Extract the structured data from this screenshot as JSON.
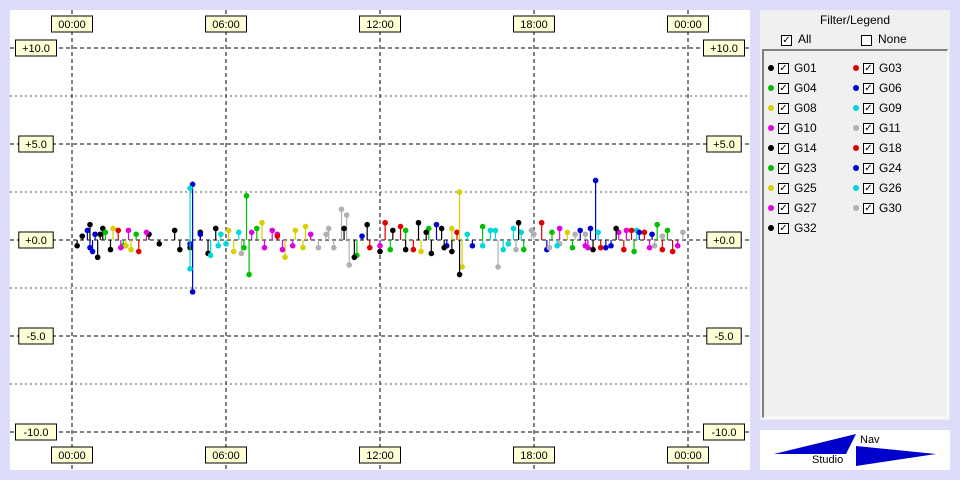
{
  "legend": {
    "title": "Filter/Legend",
    "all_label": "All",
    "none_label": "None",
    "all_checked": true,
    "none_checked": false,
    "check_glyph": "✓",
    "items": [
      {
        "label": "G01",
        "color": "#000000",
        "checked": true
      },
      {
        "label": "G03",
        "color": "#e00000",
        "checked": true
      },
      {
        "label": "G04",
        "color": "#00c000",
        "checked": true
      },
      {
        "label": "G06",
        "color": "#0000d0",
        "checked": true
      },
      {
        "label": "G08",
        "color": "#d8d000",
        "checked": true
      },
      {
        "label": "G09",
        "color": "#00d8d8",
        "checked": true
      },
      {
        "label": "G10",
        "color": "#e000e0",
        "checked": true
      },
      {
        "label": "G11",
        "color": "#b0b0b0",
        "checked": true
      },
      {
        "label": "G14",
        "color": "#000000",
        "checked": true
      },
      {
        "label": "G18",
        "color": "#e00000",
        "checked": true
      },
      {
        "label": "G23",
        "color": "#00c000",
        "checked": true
      },
      {
        "label": "G24",
        "color": "#0000d0",
        "checked": true
      },
      {
        "label": "G25",
        "color": "#d8d000",
        "checked": true
      },
      {
        "label": "G26",
        "color": "#00d8d8",
        "checked": true
      },
      {
        "label": "G27",
        "color": "#e000e0",
        "checked": true
      },
      {
        "label": "G30",
        "color": "#b0b0b0",
        "checked": true
      },
      {
        "label": "G32",
        "color": "#000000",
        "checked": true
      }
    ]
  },
  "logo": {
    "nav_text": "Nav",
    "studio_text": "Studio",
    "color": "#0000cc"
  },
  "chart_data": {
    "type": "scatter",
    "title": "",
    "xlabel": "",
    "ylabel": "",
    "xlim": [
      0,
      24
    ],
    "ylim": [
      -10,
      10
    ],
    "x_unit": "hours",
    "x_ticks": [
      0,
      6,
      12,
      18,
      24
    ],
    "x_tick_labels": [
      "00:00",
      "06:00",
      "12:00",
      "18:00",
      "00:00"
    ],
    "y_ticks": [
      10,
      5,
      0,
      -5,
      -10
    ],
    "y_tick_labels": [
      "+10.0",
      "+5.0",
      "+0.0",
      "-5.0",
      "-10.0"
    ],
    "grid": true,
    "grid_style": "dashed",
    "marker": "dot-with-stem",
    "series": [
      {
        "name": "G01",
        "color": "#000000",
        "points": [
          [
            0.4,
            0.2
          ],
          [
            0.7,
            0.8
          ],
          [
            1.0,
            -0.9
          ],
          [
            1.2,
            0.6
          ],
          [
            1.5,
            -0.5
          ],
          [
            3.0,
            0.3
          ],
          [
            3.4,
            -0.2
          ],
          [
            4.0,
            0.5
          ],
          [
            4.6,
            -0.4
          ],
          [
            5.0,
            0.4
          ],
          [
            5.3,
            -0.7
          ],
          [
            5.6,
            0.6
          ]
        ]
      },
      {
        "name": "G03",
        "color": "#e00000",
        "points": [
          [
            1.8,
            0.5
          ],
          [
            2.6,
            -0.6
          ],
          [
            11.6,
            -0.4
          ],
          [
            12.2,
            0.9
          ],
          [
            15.0,
            0.4
          ],
          [
            21.5,
            -0.5
          ],
          [
            22.3,
            0.4
          ],
          [
            23.4,
            -0.6
          ]
        ]
      },
      {
        "name": "G04",
        "color": "#00c000",
        "points": [
          [
            1.3,
            0.4
          ],
          [
            2.0,
            -0.3
          ],
          [
            6.8,
            2.3
          ],
          [
            6.9,
            -1.8
          ],
          [
            7.2,
            0.6
          ],
          [
            11.1,
            -0.8
          ],
          [
            13.0,
            0.5
          ],
          [
            16.0,
            0.7
          ],
          [
            19.5,
            -0.4
          ],
          [
            22.8,
            0.8
          ]
        ]
      },
      {
        "name": "G06",
        "color": "#0000d0",
        "points": [
          [
            0.7,
            -0.4
          ],
          [
            0.9,
            0.3
          ],
          [
            4.6,
            -0.2
          ],
          [
            4.7,
            2.9
          ],
          [
            4.7,
            -2.7
          ],
          [
            5.0,
            0.3
          ],
          [
            11.3,
            0.2
          ],
          [
            15.6,
            -0.3
          ],
          [
            19.8,
            0.5
          ],
          [
            20.4,
            3.1
          ],
          [
            21.0,
            -0.3
          ],
          [
            22.6,
            0.3
          ]
        ]
      },
      {
        "name": "G08",
        "color": "#d8d000",
        "points": [
          [
            1.6,
            0.6
          ],
          [
            2.3,
            -0.5
          ],
          [
            6.3,
            -0.6
          ],
          [
            7.4,
            0.9
          ],
          [
            8.3,
            -0.9
          ],
          [
            9.1,
            0.7
          ],
          [
            15.1,
            2.5
          ],
          [
            15.2,
            -1.4
          ],
          [
            14.8,
            0.6
          ]
        ]
      },
      {
        "name": "G09",
        "color": "#00d8d8",
        "points": [
          [
            4.6,
            2.7
          ],
          [
            4.6,
            -1.5
          ],
          [
            5.4,
            -0.8
          ],
          [
            5.8,
            0.3
          ],
          [
            6.0,
            -0.2
          ],
          [
            6.5,
            0.4
          ],
          [
            15.4,
            0.3
          ],
          [
            16.0,
            -0.3
          ],
          [
            16.5,
            0.5
          ],
          [
            17.0,
            -0.2
          ],
          [
            17.5,
            0.4
          ],
          [
            22.0,
            0.5
          ]
        ]
      },
      {
        "name": "G10",
        "color": "#e000e0",
        "points": [
          [
            1.9,
            -0.4
          ],
          [
            2.2,
            0.5
          ],
          [
            7.0,
            0.4
          ],
          [
            7.5,
            -0.4
          ],
          [
            8.0,
            0.3
          ],
          [
            8.6,
            -0.3
          ],
          [
            9.3,
            0.3
          ],
          [
            19.0,
            0.6
          ],
          [
            20.0,
            -0.3
          ],
          [
            21.3,
            0.4
          ],
          [
            22.5,
            -0.4
          ]
        ]
      },
      {
        "name": "G11",
        "color": "#b0b0b0",
        "points": [
          [
            6.6,
            -0.7
          ],
          [
            9.9,
            0.3
          ],
          [
            10.2,
            -0.4
          ],
          [
            10.5,
            1.6
          ],
          [
            10.7,
            1.3
          ],
          [
            10.8,
            -1.3
          ],
          [
            16.6,
            -1.4
          ],
          [
            17.3,
            -0.5
          ],
          [
            18.0,
            0.3
          ],
          [
            19.0,
            -0.2
          ],
          [
            20.0,
            0.3
          ],
          [
            23.0,
            0.2
          ]
        ]
      },
      {
        "name": "G14",
        "color": "#000000",
        "points": [
          [
            10.6,
            0.6
          ],
          [
            11.0,
            -0.9
          ],
          [
            11.5,
            0.8
          ],
          [
            12.0,
            -0.6
          ],
          [
            12.5,
            0.5
          ],
          [
            13.0,
            -0.5
          ],
          [
            13.5,
            0.9
          ],
          [
            14.0,
            -0.7
          ],
          [
            14.4,
            0.6
          ],
          [
            14.8,
            -0.6
          ],
          [
            15.1,
            -1.8
          ]
        ]
      },
      {
        "name": "G18",
        "color": "#e00000",
        "points": [
          [
            8.0,
            0.2
          ],
          [
            12.8,
            0.7
          ],
          [
            13.3,
            -0.5
          ],
          [
            18.3,
            0.9
          ],
          [
            20.6,
            -0.4
          ],
          [
            21.8,
            0.5
          ],
          [
            23.0,
            -0.5
          ]
        ]
      },
      {
        "name": "G23",
        "color": "#00c000",
        "points": [
          [
            2.5,
            0.3
          ],
          [
            6.7,
            -0.4
          ],
          [
            12.4,
            -0.5
          ],
          [
            13.9,
            0.6
          ],
          [
            17.6,
            -0.5
          ],
          [
            18.7,
            0.4
          ],
          [
            21.9,
            -0.6
          ],
          [
            23.2,
            0.5
          ]
        ]
      },
      {
        "name": "G24",
        "color": "#0000d0",
        "points": [
          [
            0.6,
            0.5
          ],
          [
            0.8,
            -0.6
          ],
          [
            14.2,
            0.8
          ],
          [
            14.6,
            -0.3
          ],
          [
            18.5,
            -0.5
          ],
          [
            20.2,
            0.6
          ],
          [
            20.8,
            -0.4
          ],
          [
            22.1,
            0.4
          ]
        ]
      },
      {
        "name": "G25",
        "color": "#d8d000",
        "points": [
          [
            2.1,
            -0.3
          ],
          [
            6.1,
            0.5
          ],
          [
            8.7,
            0.5
          ],
          [
            9.0,
            -0.4
          ],
          [
            13.6,
            -0.6
          ],
          [
            19.3,
            0.4
          ]
        ]
      },
      {
        "name": "G26",
        "color": "#00d8d8",
        "points": [
          [
            5.7,
            -0.3
          ],
          [
            16.3,
            0.5
          ],
          [
            16.8,
            -0.5
          ],
          [
            17.2,
            0.6
          ],
          [
            18.9,
            -0.3
          ],
          [
            20.5,
            0.4
          ]
        ]
      },
      {
        "name": "G27",
        "color": "#e000e0",
        "points": [
          [
            2.9,
            0.4
          ],
          [
            7.8,
            0.5
          ],
          [
            8.2,
            -0.5
          ],
          [
            12.0,
            -0.3
          ],
          [
            20.1,
            -0.4
          ],
          [
            21.6,
            0.5
          ],
          [
            23.6,
            -0.3
          ]
        ]
      },
      {
        "name": "G30",
        "color": "#b0b0b0",
        "points": [
          [
            9.6,
            -0.4
          ],
          [
            10.0,
            0.6
          ],
          [
            17.9,
            0.5
          ],
          [
            18.6,
            -0.4
          ],
          [
            19.6,
            0.3
          ],
          [
            22.7,
            -0.3
          ],
          [
            23.8,
            0.4
          ]
        ]
      },
      {
        "name": "G32",
        "color": "#000000",
        "points": [
          [
            0.2,
            -0.3
          ],
          [
            1.1,
            0.3
          ],
          [
            4.2,
            -0.5
          ],
          [
            13.8,
            0.4
          ],
          [
            14.5,
            -0.4
          ],
          [
            17.4,
            0.9
          ],
          [
            20.3,
            -0.5
          ],
          [
            21.2,
            0.6
          ]
        ]
      }
    ]
  }
}
